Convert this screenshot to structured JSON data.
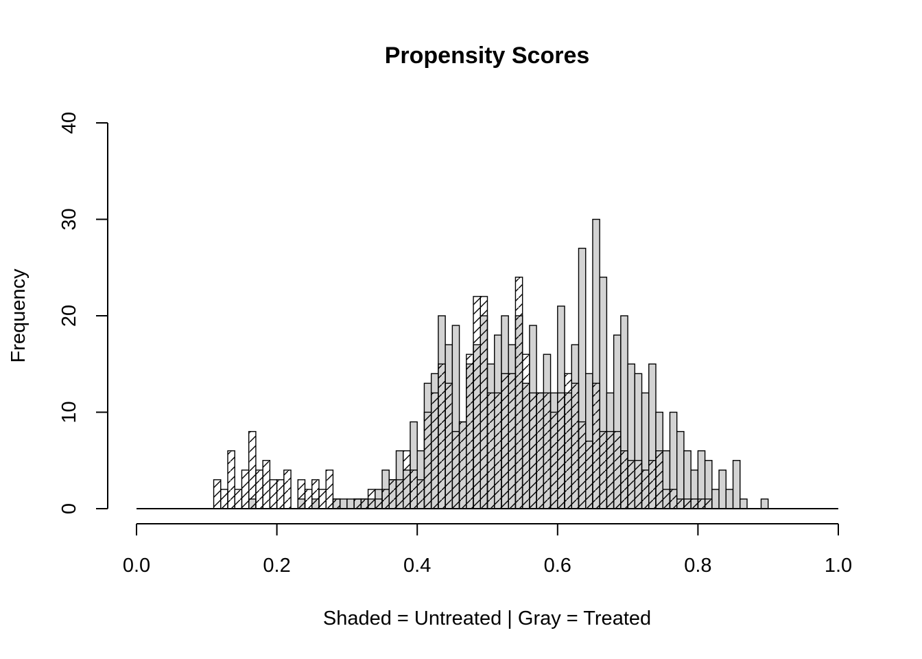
{
  "chart_data": {
    "type": "bar",
    "title": "Propensity Scores",
    "xlabel": "Shaded = Untreated | Gray = Treated",
    "ylabel": "Frequency",
    "xlim": [
      0,
      1
    ],
    "ylim": [
      0,
      40
    ],
    "x_ticks": [
      "0.0",
      "0.2",
      "0.4",
      "0.6",
      "0.8",
      "1.0"
    ],
    "y_ticks": [
      "0",
      "10",
      "20",
      "30",
      "40"
    ],
    "bin_width": 0.01,
    "bin_starts": [
      0.11,
      0.12,
      0.13,
      0.14,
      0.15,
      0.16,
      0.17,
      0.18,
      0.19,
      0.2,
      0.21,
      0.22,
      0.23,
      0.24,
      0.25,
      0.26,
      0.27,
      0.28,
      0.29,
      0.3,
      0.31,
      0.32,
      0.33,
      0.34,
      0.35,
      0.36,
      0.37,
      0.38,
      0.39,
      0.4,
      0.41,
      0.42,
      0.43,
      0.44,
      0.45,
      0.46,
      0.47,
      0.48,
      0.49,
      0.5,
      0.51,
      0.52,
      0.53,
      0.54,
      0.55,
      0.56,
      0.57,
      0.58,
      0.59,
      0.6,
      0.61,
      0.62,
      0.63,
      0.64,
      0.65,
      0.66,
      0.67,
      0.68,
      0.69,
      0.7,
      0.71,
      0.72,
      0.73,
      0.74,
      0.75,
      0.76,
      0.77,
      0.78,
      0.79,
      0.8,
      0.81,
      0.82,
      0.83,
      0.84,
      0.85,
      0.86,
      0.87,
      0.88,
      0.89
    ],
    "series": [
      {
        "name": "Untreated",
        "pattern": "hatched",
        "values": [
          3,
          2,
          6,
          2,
          4,
          8,
          4,
          5,
          3,
          3,
          4,
          0,
          3,
          2,
          3,
          2,
          4,
          1,
          0,
          0,
          1,
          1,
          2,
          1,
          2,
          3,
          3,
          6,
          4,
          3,
          10,
          12,
          15,
          13,
          8,
          9,
          16,
          22,
          22,
          12,
          12,
          14,
          14,
          24,
          16,
          12,
          12,
          12,
          10,
          12,
          14,
          13,
          9,
          7,
          13,
          8,
          8,
          8,
          6,
          5,
          5,
          4,
          5,
          6,
          2,
          2,
          1,
          1,
          1,
          1,
          1,
          0,
          0,
          0,
          0,
          0,
          0,
          0,
          0
        ],
        "color": "#ffffff"
      },
      {
        "name": "Treated",
        "pattern": "gray",
        "values": [
          0,
          0,
          0,
          0,
          0,
          1,
          0,
          0,
          0,
          0,
          0,
          0,
          1,
          0,
          1,
          0,
          0,
          1,
          1,
          1,
          1,
          1,
          1,
          2,
          4,
          3,
          6,
          4,
          9,
          6,
          13,
          14,
          20,
          17,
          19,
          9,
          15,
          17,
          20,
          15,
          18,
          20,
          17,
          20,
          13,
          19,
          12,
          16,
          12,
          21,
          12,
          17,
          27,
          14,
          30,
          24,
          12,
          18,
          20,
          15,
          14,
          12,
          15,
          10,
          6,
          10,
          8,
          6,
          4,
          6,
          5,
          2,
          4,
          2,
          5,
          1,
          0,
          0,
          1
        ],
        "color": "#d3d3d3"
      }
    ]
  }
}
